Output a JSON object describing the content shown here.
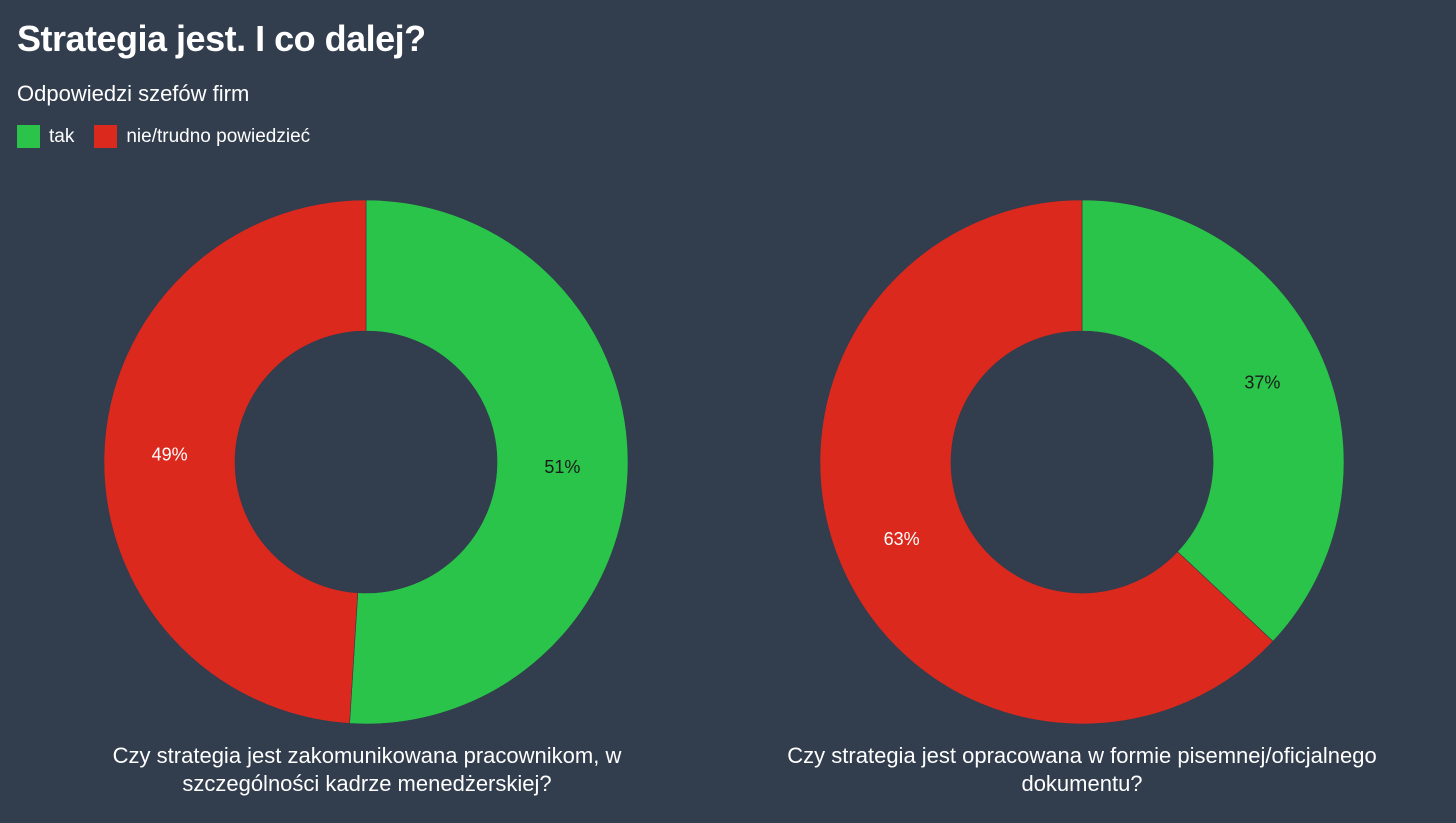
{
  "chart_data": [
    {
      "type": "pie",
      "donut": true,
      "title": "Strategia jest. I co dalej?",
      "subtitle": "Odpowiedzi szefów firm",
      "legend": [
        {
          "label": "tak",
          "color": "#29c449"
        },
        {
          "label": "nie/trudno powiedzieć",
          "color": "#dc291e"
        }
      ],
      "caption_line1": "Czy strategia jest zakomunikowana pracownikom, w",
      "caption_line2": "szczególności kadrze menedżerskiej?",
      "slices": [
        {
          "label": "tak",
          "value": 51,
          "display": "51%",
          "color": "#29c449"
        },
        {
          "label": "nie/trudno powiedzieć",
          "value": 49,
          "display": "49%",
          "color": "#dc291e"
        }
      ]
    },
    {
      "type": "pie",
      "donut": true,
      "caption_line1": "Czy strategia jest opracowana w formie pisemnej/oficjalnego",
      "caption_line2": "dokumentu?",
      "slices": [
        {
          "label": "tak",
          "value": 37,
          "display": "37%",
          "color": "#29c449"
        },
        {
          "label": "nie/trudno powiedzieć",
          "value": 63,
          "display": "63%",
          "color": "#dc291e"
        }
      ]
    }
  ]
}
